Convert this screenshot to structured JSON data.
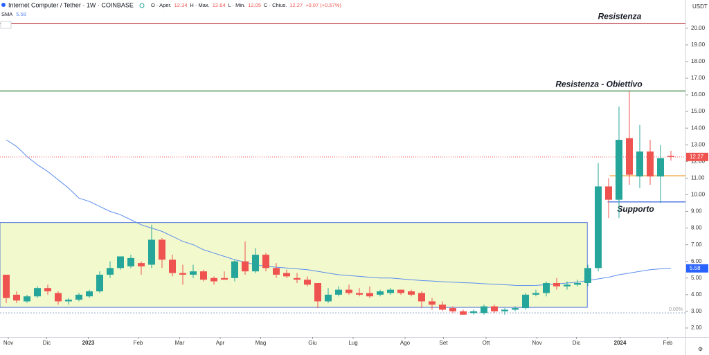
{
  "chart_data": {
    "type": "candlestick",
    "title": "Internet Computer / Tether · 1W · COINBASE",
    "currency": "USDT",
    "header": {
      "labels": [
        "O · Aper.",
        "H · Max.",
        "L · Min.",
        "C · Chius."
      ],
      "change": "+0.07 (+0.57%)"
    },
    "up_color": "#26a69a",
    "down_color": "#ef5350",
    "candles": {
      "open": [
        5.2,
        4.0,
        3.6,
        3.9,
        4.4,
        4.1,
        3.6,
        3.7,
        3.9,
        4.2,
        5.2,
        5.6,
        5.7,
        5.9,
        5.8,
        7.3,
        6.1,
        5.3,
        5.2,
        5.4,
        5.0,
        5.0,
        5.0,
        6.0,
        5.4,
        6.4,
        5.6,
        5.3,
        5.0,
        4.9,
        4.7,
        3.6,
        4.0,
        4.3,
        4.1,
        4.1,
        4.0,
        4.1,
        4.3,
        4.2,
        4.1,
        3.6,
        3.4,
        3.2,
        3.0,
        2.9,
        2.9,
        3.3,
        3.0,
        3.1,
        3.2,
        4.0,
        4.1,
        4.7,
        4.5,
        4.6,
        4.7,
        5.6,
        10.5,
        9.7,
        13.4,
        11.1,
        12.6,
        11.1,
        12.34
      ],
      "high": [
        5.2,
        4.2,
        4.0,
        4.5,
        4.6,
        4.2,
        3.8,
        4.1,
        4.3,
        5.4,
        6.0,
        6.3,
        6.4,
        6.0,
        8.2,
        7.4,
        6.4,
        5.8,
        5.8,
        5.5,
        5.1,
        5.4,
        6.1,
        7.2,
        6.8,
        6.5,
        5.9,
        5.5,
        5.3,
        5.1,
        4.7,
        4.4,
        4.5,
        4.6,
        4.4,
        4.5,
        4.3,
        4.4,
        4.3,
        4.3,
        4.2,
        3.8,
        3.6,
        3.3,
        3.1,
        3.1,
        3.4,
        3.4,
        3.2,
        3.3,
        4.1,
        4.3,
        4.8,
        5.0,
        4.8,
        4.9,
        5.8,
        11.9,
        11.0,
        15.3,
        16.2,
        14.2,
        13.3,
        13.0,
        12.64
      ],
      "low": [
        3.5,
        3.5,
        3.5,
        3.8,
        4.0,
        3.4,
        3.4,
        3.6,
        3.8,
        4.1,
        5.0,
        5.5,
        5.6,
        5.2,
        5.6,
        5.6,
        5.1,
        4.6,
        5.0,
        4.8,
        4.6,
        4.9,
        4.8,
        5.2,
        5.3,
        5.4,
        5.0,
        5.0,
        4.7,
        4.5,
        3.2,
        3.5,
        3.9,
        4.0,
        3.9,
        3.8,
        3.9,
        4.0,
        4.0,
        3.9,
        3.2,
        3.1,
        3.0,
        2.9,
        2.8,
        2.8,
        2.8,
        2.9,
        2.8,
        3.0,
        3.1,
        3.9,
        3.9,
        4.3,
        4.3,
        4.5,
        4.5,
        5.4,
        8.6,
        8.6,
        10.6,
        10.4,
        10.6,
        9.5,
        12.05
      ],
      "close": [
        3.8,
        3.65,
        3.9,
        4.4,
        4.2,
        3.6,
        3.7,
        4.0,
        4.2,
        5.2,
        5.6,
        6.3,
        6.2,
        5.7,
        7.3,
        6.1,
        5.3,
        5.2,
        5.4,
        4.9,
        4.8,
        4.9,
        6.0,
        5.4,
        6.4,
        5.6,
        5.2,
        5.1,
        4.9,
        4.6,
        3.6,
        4.0,
        4.3,
        4.1,
        4.0,
        3.9,
        4.2,
        4.3,
        4.1,
        4.0,
        3.6,
        3.4,
        3.1,
        3.0,
        2.8,
        3.0,
        3.3,
        3.0,
        3.1,
        3.2,
        4.0,
        4.1,
        4.7,
        4.5,
        4.6,
        4.7,
        5.6,
        10.5,
        9.7,
        13.3,
        11.2,
        12.6,
        11.1,
        12.2,
        12.27
      ]
    },
    "sma": {
      "name": "SMA",
      "color": "#5b8def",
      "values": [
        13.3,
        12.9,
        12.3,
        11.8,
        11.4,
        10.9,
        10.4,
        9.8,
        9.6,
        9.3,
        9.0,
        8.8,
        8.5,
        8.2,
        8.0,
        7.8,
        7.5,
        7.2,
        7.0,
        6.7,
        6.5,
        6.3,
        6.1,
        5.95,
        5.8,
        5.7,
        5.65,
        5.6,
        5.55,
        5.5,
        5.4,
        5.3,
        5.2,
        5.15,
        5.1,
        5.05,
        5.0,
        5.0,
        4.95,
        4.9,
        4.85,
        4.82,
        4.78,
        4.75,
        4.72,
        4.7,
        4.66,
        4.63,
        4.6,
        4.56,
        4.55,
        4.56,
        4.6,
        4.65,
        4.7,
        4.75,
        4.85,
        4.95,
        5.05,
        5.2,
        5.3,
        5.4,
        5.5,
        5.55,
        5.58
      ]
    },
    "levels": [
      {
        "label": "Resistenza",
        "value": 20.3,
        "color": "#b22833",
        "text_color": "#b22833",
        "start": -0.6
      },
      {
        "label": "Resistenza - Obiettivo",
        "value": 16.23,
        "color": "#2e7d32",
        "text_color": "#4dd0e1",
        "start": -0.6
      },
      {
        "value": 11.14,
        "color": "#f2a33a",
        "start": 58.1
      },
      {
        "label": "Supporto",
        "value": 9.57,
        "color": "#1e4fd8",
        "text_color": "#3a6ee8",
        "start": 57.9
      }
    ],
    "zone": {
      "x": [
        -0.6,
        55.95
      ],
      "y": [
        3.24,
        8.33
      ],
      "fill": "#f2f9cc",
      "stroke": "#5b7bd5"
    },
    "baseline": {
      "value": 2.91,
      "label": "0.00%"
    },
    "xlim": [
      -0.6,
      65.4
    ],
    "ylim": [
      1.5,
      21.5
    ],
    "xticks": [
      {
        "value": 0.2,
        "label": "Nov"
      },
      {
        "value": 3.9,
        "label": "Dic"
      },
      {
        "value": 7.9,
        "label": "2023"
      },
      {
        "value": 12.7,
        "label": "Feb"
      },
      {
        "value": 16.7,
        "label": "Mar"
      },
      {
        "value": 20.6,
        "label": "Apr"
      },
      {
        "value": 24.5,
        "label": "Mag"
      },
      {
        "value": 29.5,
        "label": "Giu"
      },
      {
        "value": 33.4,
        "label": "Lug"
      },
      {
        "value": 38.4,
        "label": "Ago"
      },
      {
        "value": 42.1,
        "label": "Set"
      },
      {
        "value": 46.2,
        "label": "Ott"
      },
      {
        "value": 51.1,
        "label": "Nov"
      },
      {
        "value": 54.9,
        "label": "Dic"
      },
      {
        "value": 59.1,
        "label": "2024"
      },
      {
        "value": 63.7,
        "label": "Feb"
      }
    ],
    "yticks": [
      {
        "value": 2,
        "label": "2.00"
      },
      {
        "value": 3,
        "label": "3.00"
      },
      {
        "value": 4,
        "label": "4.00"
      },
      {
        "value": 5,
        "label": "5.00"
      },
      {
        "value": 6,
        "label": "6.00"
      },
      {
        "value": 7,
        "label": "7.00"
      },
      {
        "value": 8,
        "label": "8.00"
      },
      {
        "value": 9,
        "label": "9.00"
      },
      {
        "value": 10,
        "label": "10.00"
      },
      {
        "value": 11,
        "label": "11.00"
      },
      {
        "value": 12,
        "label": "12.00"
      },
      {
        "value": 13,
        "label": "13.00"
      },
      {
        "value": 14,
        "label": "14.00"
      },
      {
        "value": 15,
        "label": "15.00"
      },
      {
        "value": 16,
        "label": "16.00"
      },
      {
        "value": 17,
        "label": "17.00"
      },
      {
        "value": 18,
        "label": "18.00"
      },
      {
        "value": 19,
        "label": "19.00"
      },
      {
        "value": 20,
        "label": "20.00"
      }
    ]
  }
}
